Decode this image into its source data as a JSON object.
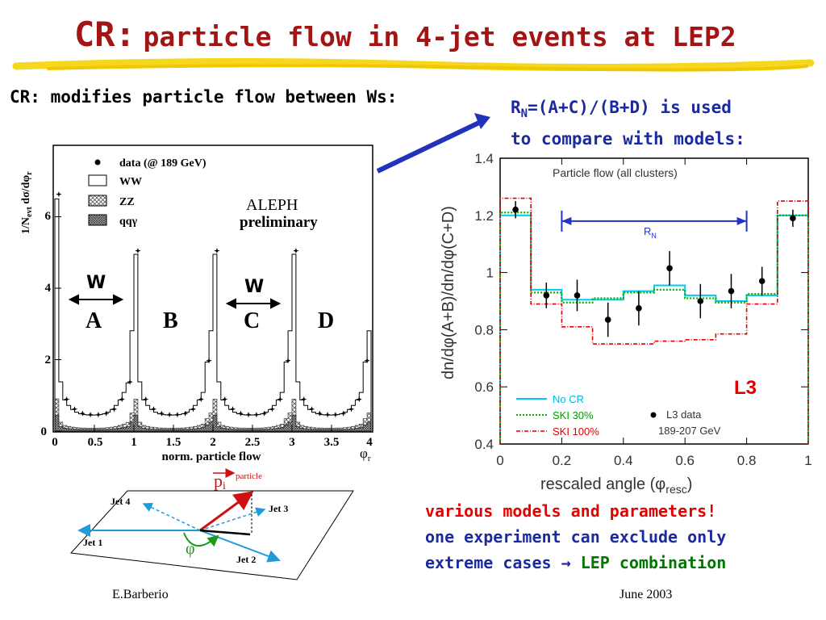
{
  "title": {
    "prefix": "CR:",
    "rest": "particle flow in 4-jet events at LEP2"
  },
  "left_text": "CR: modifies particle flow between Ws:",
  "rn_text": {
    "r": "R",
    "sub": "N",
    "line1_rest": "=(A+C)/(B+D) is used",
    "line2": "to compare with models:"
  },
  "bottom_text": {
    "line1": "various models and parameters!",
    "line2": "one experiment can exclude only",
    "line3_a": "extreme cases",
    "line3_arrow": "→",
    "line3_b": "LEP combination"
  },
  "footer": {
    "author": "E.Barberio",
    "date": "June 2003"
  },
  "aleph_chart": {
    "type": "bar",
    "ylabel": "1/N",
    "ylabel_sub": "evt",
    "ylabel_rest": " dσ/dφ",
    "ylabel_sub2": "r",
    "xlabel": "norm. particle flow",
    "axis_symbol": "φ",
    "axis_symbol_sub": "r",
    "experiment": "ALEPH",
    "status": "preliminary",
    "legend": [
      "data (@ 189 GeV)",
      "WW",
      "ZZ",
      "qqγ"
    ],
    "xticks": [
      "0",
      "0.5",
      "1",
      "1.5",
      "2",
      "2.5",
      "3",
      "3.5",
      "4"
    ],
    "yticks": [
      "0",
      "2",
      "4",
      "6"
    ],
    "regions": [
      "A",
      "B",
      "C",
      "D"
    ],
    "w_labels": [
      "W",
      "W"
    ]
  },
  "diagram": {
    "particle": "particle",
    "momentum": "p",
    "momentum_sub": "i",
    "angle": "φ",
    "jets": [
      "Jet 1",
      "Jet 2",
      "Jet 3",
      "Jet 4"
    ]
  },
  "chart_data": {
    "type": "line",
    "title": "Particle flow (all clusters)",
    "xlabel": "rescaled angle (φ",
    "xlabel_sub": "resc",
    "xlabel_close": ")",
    "ylabel": "dn/dφ(A+B)/dn/dφ(C+D)",
    "xlim": [
      0,
      1
    ],
    "ylim": [
      0.4,
      1.4
    ],
    "xticks": [
      "0",
      "0.2",
      "0.4",
      "0.6",
      "0.8",
      "1"
    ],
    "yticks": [
      "0.4",
      "0.6",
      "0.8",
      "1",
      "1.2",
      "1.4"
    ],
    "rn_label": "R",
    "rn_label_sub": "N",
    "rn_range": [
      0.2,
      0.8
    ],
    "experiment": "L3",
    "data_label": "L3 data",
    "energy_label": "189-207 GeV",
    "bin_edges": [
      0,
      0.1,
      0.2,
      0.3,
      0.4,
      0.5,
      0.6,
      0.7,
      0.8,
      0.9,
      1.0
    ],
    "series": [
      {
        "name": "No CR",
        "color": "#00c8f0",
        "values": [
          1.2,
          0.94,
          0.905,
          0.905,
          0.935,
          0.955,
          0.92,
          0.9,
          0.92,
          1.2
        ]
      },
      {
        "name": "SKI 30%",
        "color": "#00b000",
        "values": [
          1.21,
          0.93,
          0.895,
          0.91,
          0.93,
          0.94,
          0.91,
          0.895,
          0.925,
          1.2
        ]
      },
      {
        "name": "SKI 100%",
        "color": "#e00000",
        "values": [
          1.26,
          0.89,
          0.81,
          0.75,
          0.75,
          0.76,
          0.765,
          0.785,
          0.89,
          1.25
        ]
      }
    ],
    "data_points": {
      "x": [
        0.05,
        0.15,
        0.25,
        0.35,
        0.45,
        0.55,
        0.65,
        0.75,
        0.85,
        0.95
      ],
      "y": [
        1.22,
        0.92,
        0.92,
        0.835,
        0.875,
        1.015,
        0.9,
        0.935,
        0.97,
        1.19
      ],
      "err": [
        0.03,
        0.045,
        0.055,
        0.06,
        0.06,
        0.06,
        0.06,
        0.06,
        0.05,
        0.03
      ]
    }
  }
}
